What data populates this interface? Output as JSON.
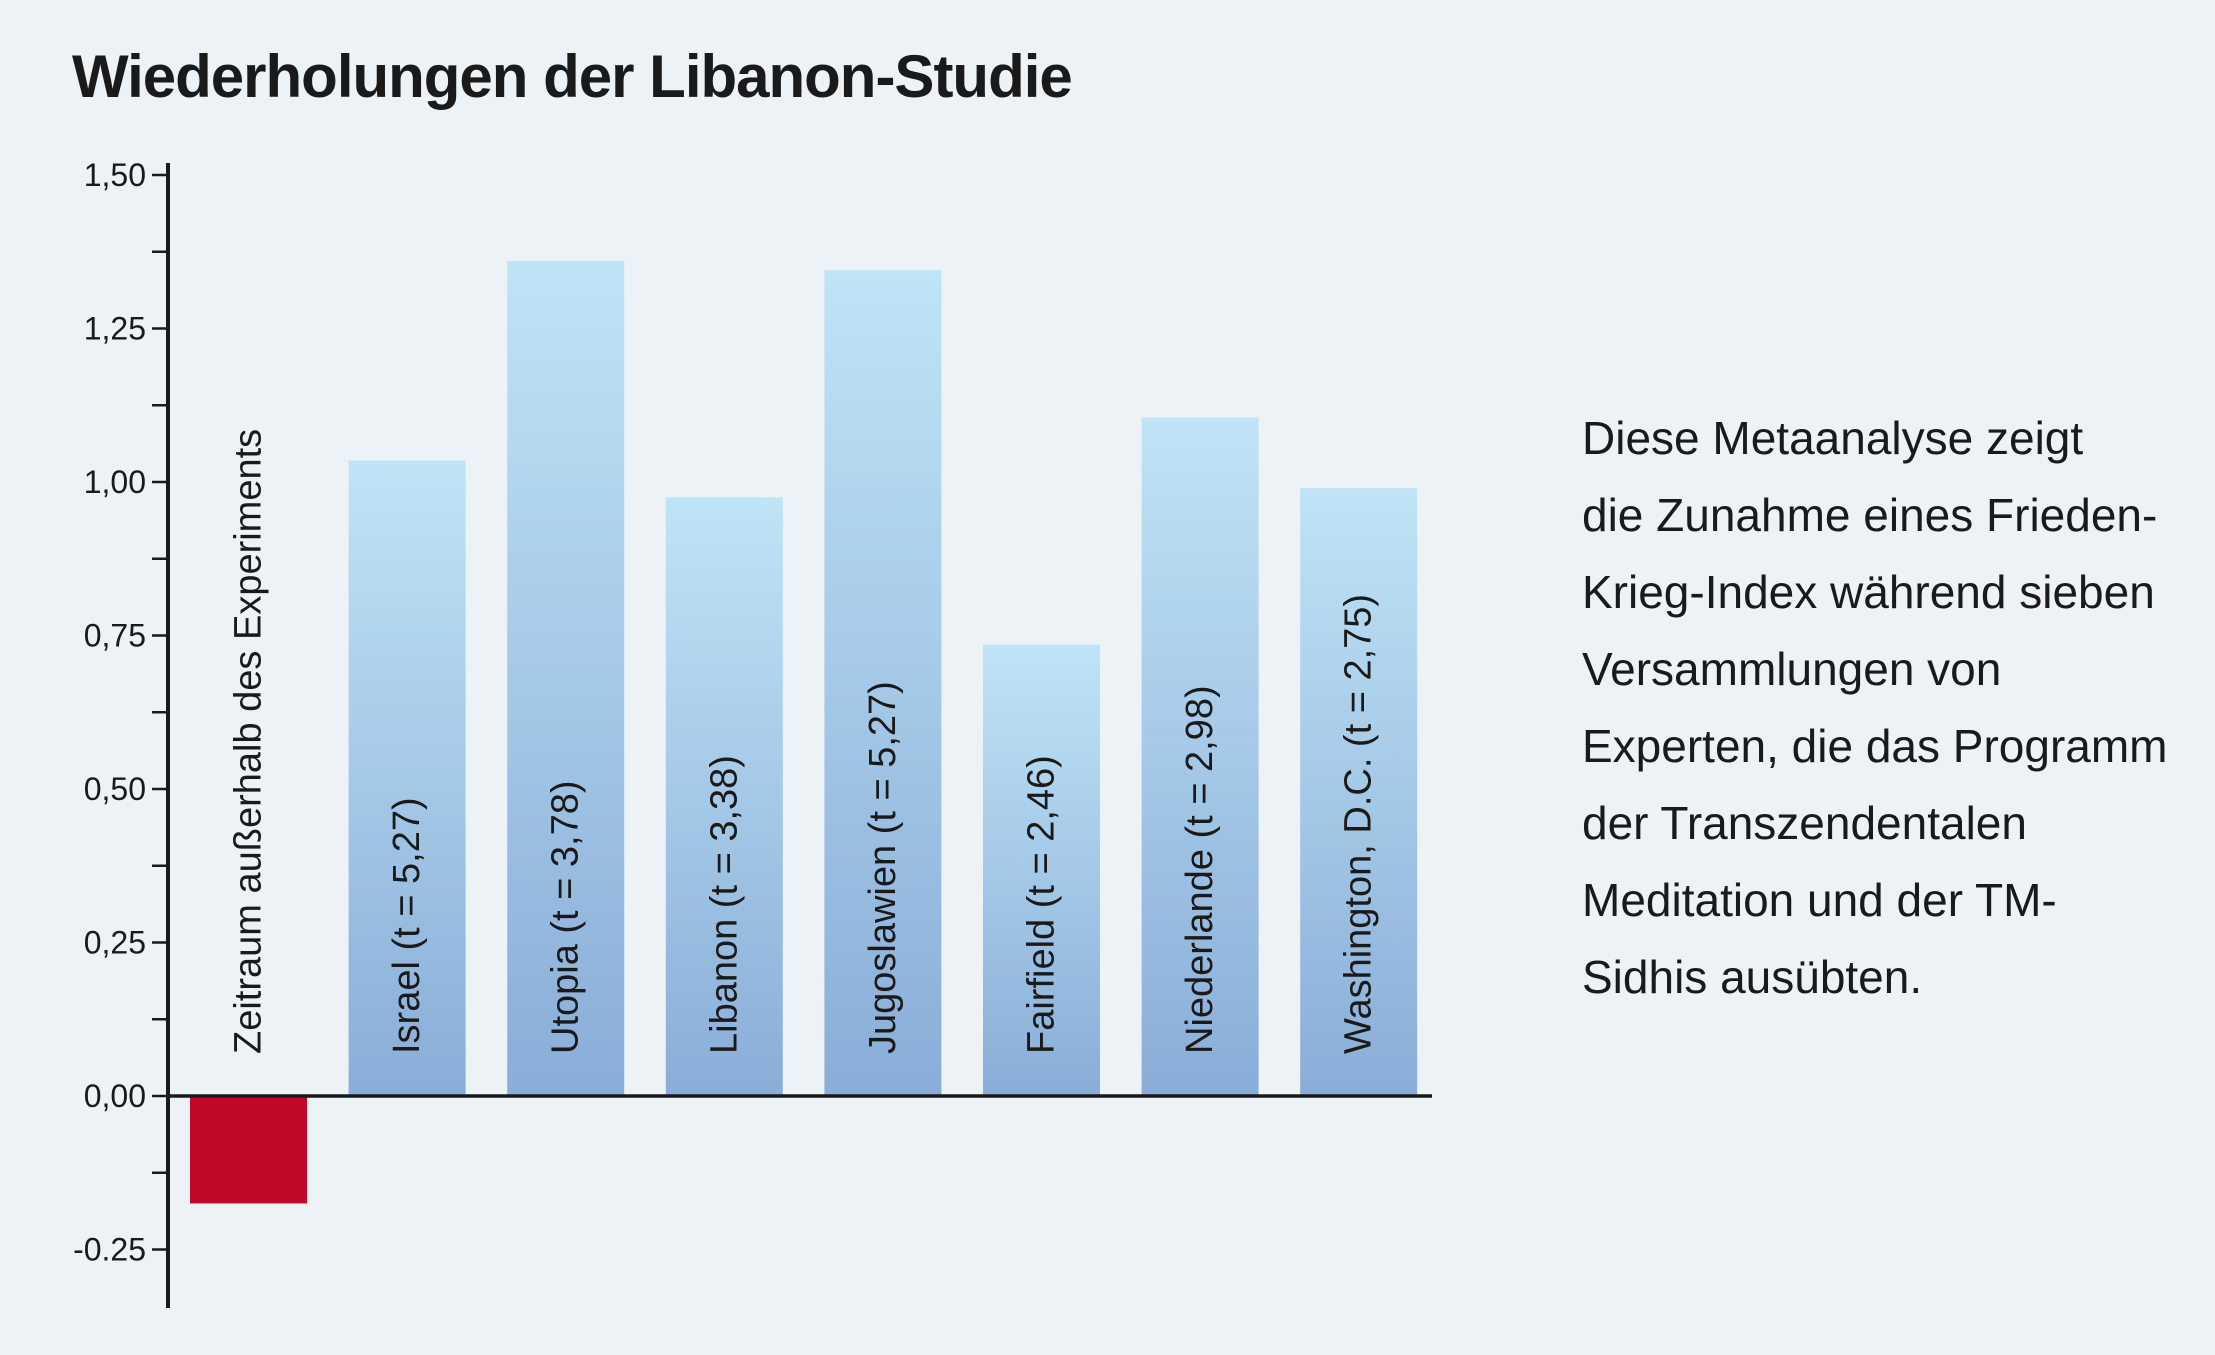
{
  "chart_data": {
    "type": "bar",
    "title": "Wiederholungen der Libanon-Studie",
    "ylim": [
      -0.33,
      1.52
    ],
    "yticks": [
      -0.25,
      0.0,
      0.25,
      0.5,
      0.75,
      1.0,
      1.25,
      1.5
    ],
    "ytick_labels": [
      "-0.25",
      "0,00",
      "0,25",
      "0,50",
      "0,75",
      "1,00",
      "1,25",
      "1,50"
    ],
    "grid": false,
    "categories": [
      "Zeitraum außerhalb des Experiments",
      "Israel (t = 5,27)",
      "Utopia (t = 3,78)",
      "Libanon (t = 3,38)",
      "Jugoslawien (t = 5,27)",
      "Fairfield (t = 2,46)",
      "Niederlande (t = 2,98)",
      "Washington, D.C. (t = 2,75)"
    ],
    "values": [
      -0.175,
      1.035,
      1.36,
      0.975,
      1.345,
      0.735,
      1.105,
      0.99
    ],
    "colors": {
      "negative": "#c0092a",
      "positive_top": "#bfe4f6",
      "positive_bottom": "#8aadd8",
      "axis": "#1a1a1a"
    }
  },
  "description": {
    "lines": [
      "Diese Metaanalyse zeigt",
      "die Zunahme eines Frieden-",
      "Krieg-Index während sieben",
      "Versammlungen von",
      "Experten, die das Programm",
      "der Transzendentalen",
      "Meditation und der TM-",
      "Sidhis ausübten."
    ]
  }
}
